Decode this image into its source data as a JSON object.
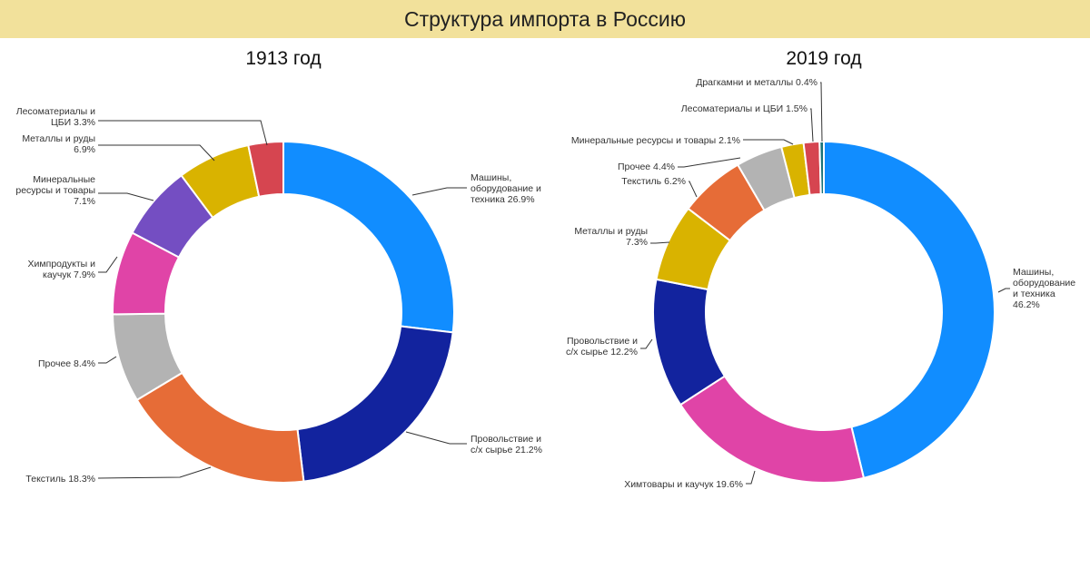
{
  "header": {
    "title": "Структура импорта в Россию"
  },
  "chart_data": [
    {
      "type": "pie",
      "title": "1913 год",
      "slices": [
        {
          "label": [
            "Машины,",
            "оборудование и",
            "техника 26.9%"
          ],
          "value": 26.9,
          "color": "#118dff"
        },
        {
          "label": [
            "Провольствие и",
            "с/х сырье 21.2%"
          ],
          "value": 21.2,
          "color": "#12239e"
        },
        {
          "label": [
            "Текстиль 18.3%"
          ],
          "value": 18.3,
          "color": "#e66c37"
        },
        {
          "label": [
            "Прочее 8.4%"
          ],
          "value": 8.4,
          "color": "#b3b3b3"
        },
        {
          "label": [
            "Химпродукты и",
            "каучук 7.9%"
          ],
          "value": 7.9,
          "color": "#e044a7"
        },
        {
          "label": [
            "Минеральные",
            "ресурсы и товары",
            "7.1%"
          ],
          "value": 7.1,
          "color": "#744ec2"
        },
        {
          "label": [
            "Металлы и руды",
            "6.9%"
          ],
          "value": 6.9,
          "color": "#d9b300"
        },
        {
          "label": [
            "Лесоматериалы и",
            "ЦБИ 3.3%"
          ],
          "value": 3.3,
          "color": "#d64550"
        }
      ]
    },
    {
      "type": "pie",
      "title": "2019 год",
      "slices": [
        {
          "label": [
            "Машины,",
            "оборудование",
            "и техника",
            "46.2%"
          ],
          "value": 46.2,
          "color": "#118dff"
        },
        {
          "label": [
            "Химтовары и каучук 19.6%"
          ],
          "value": 19.6,
          "color": "#e044a7"
        },
        {
          "label": [
            "Провольствие и",
            "с/х сырье 12.2%"
          ],
          "value": 12.2,
          "color": "#12239e"
        },
        {
          "label": [
            "Металлы и руды",
            "7.3%"
          ],
          "value": 7.3,
          "color": "#d9b300"
        },
        {
          "label": [
            "Текстиль 6.2%"
          ],
          "value": 6.2,
          "color": "#e66c37"
        },
        {
          "label": [
            "Прочее 4.4%"
          ],
          "value": 4.4,
          "color": "#b3b3b3"
        },
        {
          "label": [
            "Минеральные ресурсы и товары 2.1%"
          ],
          "value": 2.1,
          "color": "#d9b300"
        },
        {
          "label": [
            "Лесоматериалы и ЦБИ 1.5%"
          ],
          "value": 1.5,
          "color": "#d64550"
        },
        {
          "label": [
            "Драгкамни и металлы 0.4%"
          ],
          "value": 0.4,
          "color": "#197278"
        }
      ]
    }
  ]
}
